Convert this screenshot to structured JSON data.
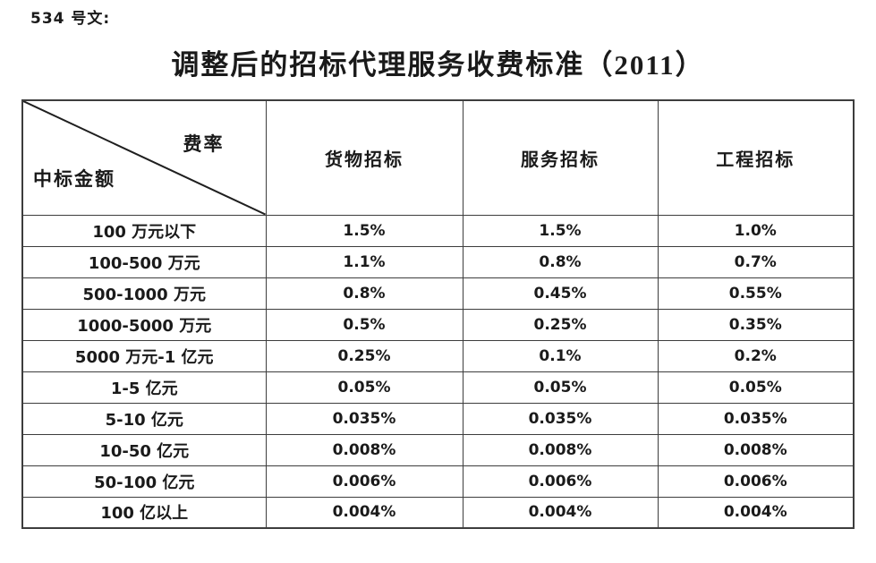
{
  "doc_number": "534 号文:",
  "title": "调整后的招标代理服务收费标准（2011）",
  "table": {
    "corner": {
      "top_right": "费率",
      "bottom_left": "中标金额"
    },
    "columns": [
      "货物招标",
      "服务招标",
      "工程招标"
    ],
    "rows": [
      {
        "label": "100 万元以下",
        "values": [
          "1.5%",
          "1.5%",
          "1.0%"
        ]
      },
      {
        "label": "100-500 万元",
        "values": [
          "1.1%",
          "0.8%",
          "0.7%"
        ]
      },
      {
        "label": "500-1000 万元",
        "values": [
          "0.8%",
          "0.45%",
          "0.55%"
        ]
      },
      {
        "label": "1000-5000 万元",
        "values": [
          "0.5%",
          "0.25%",
          "0.35%"
        ]
      },
      {
        "label": "5000 万元-1 亿元",
        "values": [
          "0.25%",
          "0.1%",
          "0.2%"
        ]
      },
      {
        "label": "1-5 亿元",
        "values": [
          "0.05%",
          "0.05%",
          "0.05%"
        ]
      },
      {
        "label": "5-10 亿元",
        "values": [
          "0.035%",
          "0.035%",
          "0.035%"
        ]
      },
      {
        "label": "10-50 亿元",
        "values": [
          "0.008%",
          "0.008%",
          "0.008%"
        ]
      },
      {
        "label": "50-100 亿元",
        "values": [
          "0.006%",
          "0.006%",
          "0.006%"
        ]
      },
      {
        "label": "100 亿以上",
        "values": [
          "0.004%",
          "0.004%",
          "0.004%"
        ]
      }
    ]
  },
  "colors": {
    "text": "#1a1a1a",
    "border": "#3d3d3d",
    "background": "#ffffff"
  }
}
